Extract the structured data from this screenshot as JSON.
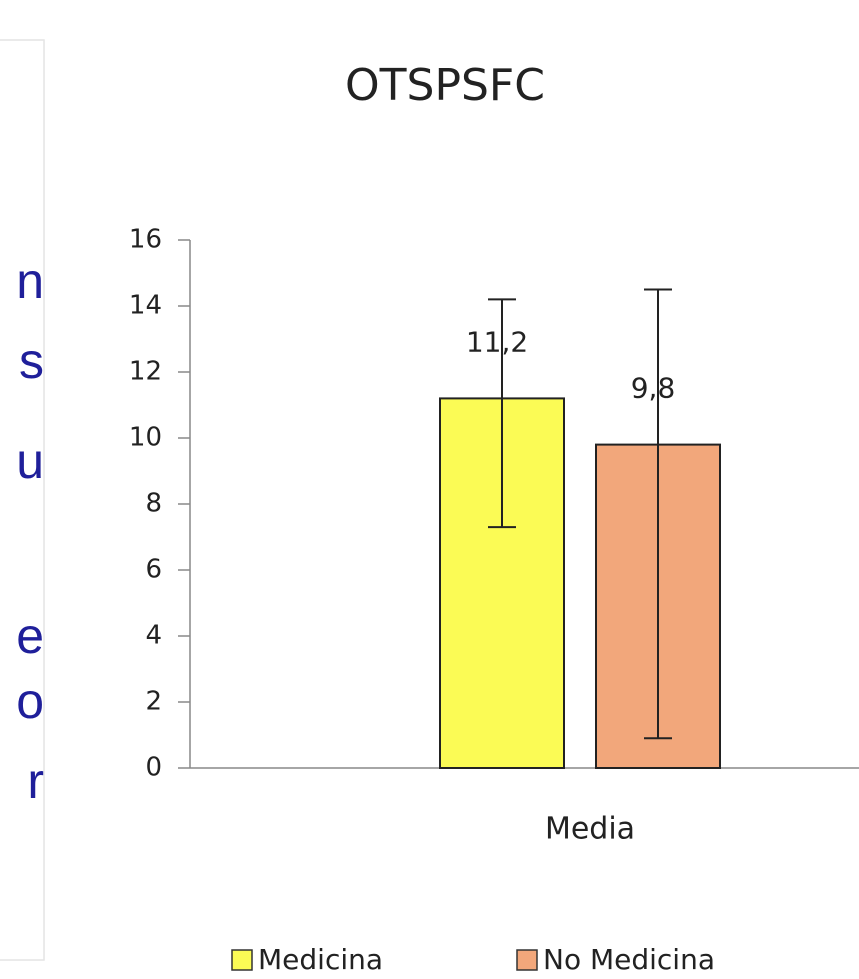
{
  "side_fragments": [
    "n",
    "s",
    "u",
    "e",
    "o",
    "r"
  ],
  "chart_data": {
    "type": "bar",
    "title": "OTSPSFC",
    "categories": [
      "Media"
    ],
    "series": [
      {
        "name": "Medicina",
        "color": "#fbfb55",
        "values": [
          11.2
        ],
        "value_labels": [
          "11,2"
        ],
        "errors_minus": [
          3.9
        ],
        "errors_plus": [
          3.0
        ]
      },
      {
        "name": "No Medicina",
        "color": "#f2a77b",
        "values": [
          9.8
        ],
        "value_labels": [
          "9,8"
        ],
        "errors_minus": [
          8.9
        ],
        "errors_plus": [
          4.7
        ]
      }
    ],
    "ylim": [
      0,
      16
    ],
    "yticks": [
      0,
      2,
      4,
      6,
      8,
      10,
      12,
      14,
      16
    ],
    "grid": false,
    "legend": "bottom"
  }
}
